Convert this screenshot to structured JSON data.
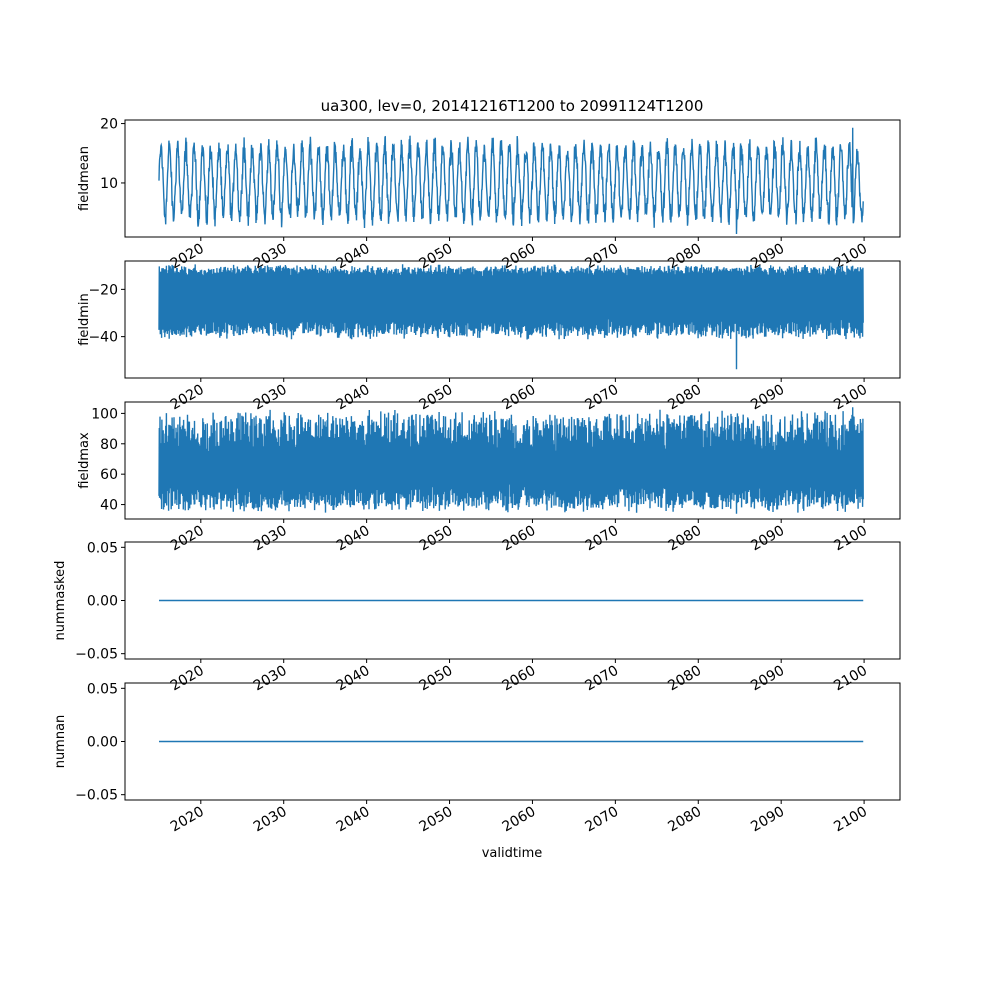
{
  "colors": {
    "series": "#1f77b4",
    "axes": "#000000",
    "background": "#ffffff"
  },
  "chart_data": {
    "type": "line",
    "title": "ua300, lev=0, 20141216T1200 to 20991124T1200",
    "xlabel": "validtime",
    "x_range": [
      "2014-12-16T12:00",
      "2099-11-24T12:00"
    ],
    "xlim": [
      "2010-11-10",
      "2104-05-01"
    ],
    "x_ticks": [
      "2020",
      "2030",
      "2040",
      "2050",
      "2060",
      "2070",
      "2080",
      "2090",
      "2100"
    ],
    "x_tick_years": [
      2020,
      2030,
      2040,
      2050,
      2060,
      2070,
      2080,
      2090,
      2100
    ],
    "grid": false,
    "legend": "none",
    "panels": [
      {
        "ylabel": "fieldmean",
        "ylim": [
          0.9,
          20.6
        ],
        "yticks": [
          10,
          20
        ],
        "band_low": [
          3.0,
          5.8
        ],
        "band_high": [
          14.5,
          17.5
        ],
        "min_value": 1.4,
        "max_value": 19.3
      },
      {
        "ylabel": "fieldmin",
        "ylim": [
          -57.5,
          -8.0
        ],
        "yticks": [
          -40,
          -20
        ],
        "band_low": [
          -40.0,
          -33.0
        ],
        "band_high": [
          -14.0,
          -10.5
        ],
        "min_value": -53.8,
        "max_value": -10.0
      },
      {
        "ylabel": "fieldmax",
        "ylim": [
          30.5,
          107.5
        ],
        "yticks": [
          40,
          60,
          80,
          100
        ],
        "band_low": [
          37.0,
          52.0
        ],
        "band_high": [
          75.0,
          100.0
        ],
        "min_value": 34.0,
        "max_value": 104.0
      },
      {
        "ylabel": "nummasked",
        "ylim": [
          -0.055,
          0.055
        ],
        "yticks": [
          -0.05,
          0.0,
          0.05
        ],
        "constant_value": 0.0
      },
      {
        "ylabel": "numnan",
        "ylim": [
          -0.055,
          0.055
        ],
        "yticks": [
          -0.05,
          0.0,
          0.05
        ],
        "constant_value": 0.0
      }
    ]
  }
}
